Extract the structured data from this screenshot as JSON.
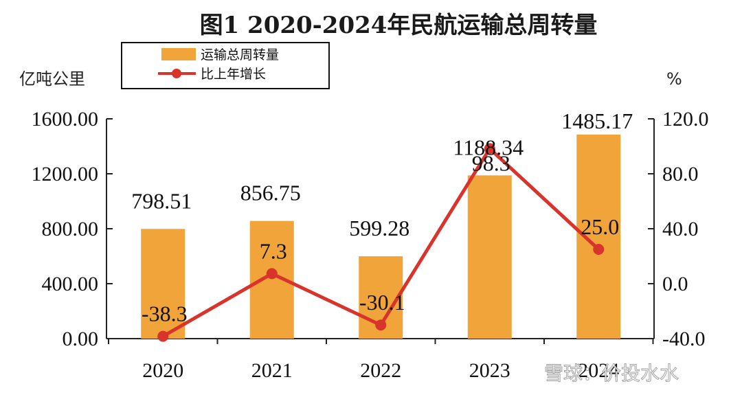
{
  "chart_data": {
    "type": "bar",
    "title": "图1  2020-2024年民航运输总周转量",
    "categories": [
      "2020",
      "2021",
      "2022",
      "2023",
      "2024"
    ],
    "y_left_label": "亿吨公里",
    "y_right_label": "%",
    "y_left_ticks": [
      "1600.00",
      "1200.00",
      "800.00",
      "400.00",
      "0.00"
    ],
    "y_right_ticks": [
      "120.0",
      "80.0",
      "40.0",
      "0.0",
      "-40.0"
    ],
    "ylim_left": [
      0,
      1600
    ],
    "ylim_right": [
      -40,
      120
    ],
    "legend_position": "top-left",
    "series": [
      {
        "name": "运输总周转量",
        "type": "bar",
        "axis": "left",
        "values": [
          798.51,
          856.75,
          599.28,
          1188.34,
          1485.17
        ],
        "labels": [
          "798.51",
          "856.75",
          "599.28",
          "1188.34",
          "1485.17"
        ],
        "color": "#F0A43A"
      },
      {
        "name": "比上年增长",
        "type": "line",
        "axis": "right",
        "values": [
          -38.3,
          7.3,
          -30.1,
          98.3,
          25.0
        ],
        "labels": [
          "-38.3",
          "7.3",
          "-30.1",
          "98.3",
          "25.0"
        ],
        "color": "#D9342B"
      }
    ]
  },
  "watermark": "雪球：价投水水"
}
